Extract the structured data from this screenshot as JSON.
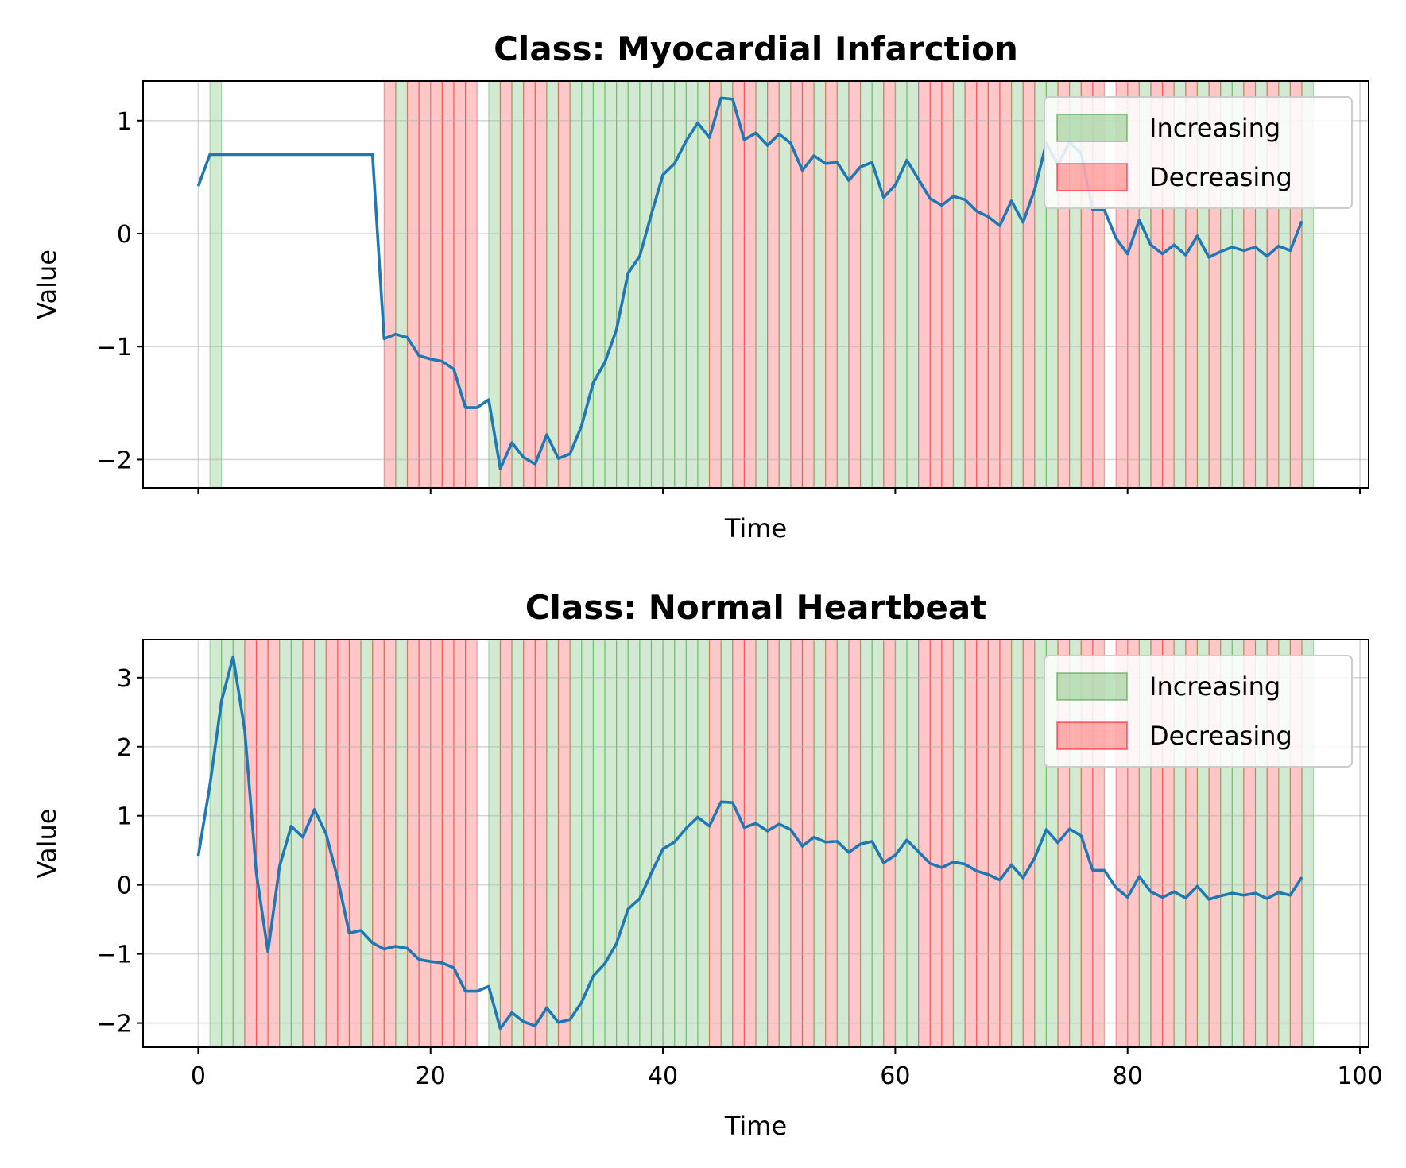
{
  "chart_data": [
    {
      "type": "line",
      "title": "Class: Myocardial Infarction",
      "xlabel": "Time",
      "ylabel": "Value",
      "xlim": [
        -4.75,
        100.75
      ],
      "ylim": [
        -2.25,
        1.35
      ],
      "xticks": [
        0,
        20,
        40,
        60,
        80,
        100
      ],
      "xtick_labels": [
        "",
        "",
        "",
        "",
        "",
        ""
      ],
      "yticks": [
        -2,
        -1,
        0,
        1
      ],
      "ytick_labels": [
        "−2",
        "−1",
        "0",
        "1"
      ],
      "grid": true,
      "legend": {
        "position": "top-right",
        "entries": [
          "Increasing",
          "Decreasing"
        ]
      },
      "colors": {
        "line": "#1f77b4",
        "increasing": "#2ca02c",
        "decreasing": "#ff0000"
      },
      "series": [
        {
          "x": [
            0,
            1,
            2,
            3,
            4,
            5,
            6,
            7,
            8,
            9,
            10,
            11,
            12,
            13,
            14,
            15,
            16,
            17,
            18,
            19,
            20,
            21,
            22,
            23,
            24,
            25,
            26,
            27,
            28,
            29,
            30,
            31,
            32,
            33,
            34,
            35,
            36,
            37,
            38,
            39,
            40,
            41,
            42,
            43,
            44,
            45,
            46,
            47,
            48,
            49,
            50,
            51,
            52,
            53,
            54,
            55,
            56,
            57,
            58,
            59,
            60,
            61,
            62,
            63,
            64,
            65,
            66,
            67,
            68,
            69,
            70,
            71,
            72,
            73,
            74,
            75,
            76,
            77,
            78,
            79,
            80,
            81,
            82,
            83,
            84,
            85,
            86,
            87,
            88,
            89,
            90,
            91,
            92,
            93,
            94,
            95
          ],
          "y": [
            0.42,
            0.7,
            0.7,
            0.7,
            0.7,
            0.7,
            0.7,
            0.7,
            0.7,
            0.7,
            0.7,
            0.7,
            0.7,
            0.7,
            0.7,
            0.7,
            -0.93,
            -0.89,
            -0.92,
            -1.08,
            -1.11,
            -1.13,
            -1.2,
            -1.54,
            -1.54,
            -1.47,
            -2.08,
            -1.85,
            -1.98,
            -2.04,
            -1.78,
            -1.99,
            -1.95,
            -1.7,
            -1.32,
            -1.14,
            -0.85,
            -0.35,
            -0.2,
            0.17,
            0.52,
            0.62,
            0.82,
            0.98,
            0.85,
            1.2,
            1.19,
            0.83,
            0.89,
            0.78,
            0.88,
            0.8,
            0.56,
            0.69,
            0.62,
            0.63,
            0.47,
            0.59,
            0.63,
            0.32,
            0.43,
            0.65,
            0.48,
            0.31,
            0.25,
            0.33,
            0.3,
            0.2,
            0.15,
            0.07,
            0.29,
            0.1,
            0.39,
            0.8,
            0.61,
            0.81,
            0.71,
            0.21,
            0.21,
            -0.04,
            -0.18,
            0.12,
            -0.1,
            -0.18,
            -0.1,
            -0.19,
            -0.02,
            -0.21,
            -0.16,
            -0.12,
            -0.15,
            -0.12,
            -0.2,
            -0.11,
            -0.15,
            0.11
          ]
        }
      ]
    },
    {
      "type": "line",
      "title": "Class: Normal Heartbeat",
      "xlabel": "Time",
      "ylabel": "Value",
      "xlim": [
        -4.75,
        100.75
      ],
      "ylim": [
        -2.35,
        3.55
      ],
      "xticks": [
        0,
        20,
        40,
        60,
        80,
        100
      ],
      "xtick_labels": [
        "0",
        "20",
        "40",
        "60",
        "80",
        "100"
      ],
      "yticks": [
        -2,
        -1,
        0,
        1,
        2,
        3
      ],
      "ytick_labels": [
        "−2",
        "−1",
        "0",
        "1",
        "2",
        "3"
      ],
      "grid": true,
      "legend": {
        "position": "top-right",
        "entries": [
          "Increasing",
          "Decreasing"
        ]
      },
      "colors": {
        "line": "#1f77b4",
        "increasing": "#2ca02c",
        "decreasing": "#ff0000"
      },
      "series": [
        {
          "x": [
            0,
            1,
            2,
            3,
            4,
            5,
            6,
            7,
            8,
            9,
            10,
            11,
            12,
            13,
            14,
            15,
            16,
            17,
            18,
            19,
            20,
            21,
            22,
            23,
            24,
            25,
            26,
            27,
            28,
            29,
            30,
            31,
            32,
            33,
            34,
            35,
            36,
            37,
            38,
            39,
            40,
            41,
            42,
            43,
            44,
            45,
            46,
            47,
            48,
            49,
            50,
            51,
            52,
            53,
            54,
            55,
            56,
            57,
            58,
            59,
            60,
            61,
            62,
            63,
            64,
            65,
            66,
            67,
            68,
            69,
            70,
            71,
            72,
            73,
            74,
            75,
            76,
            77,
            78,
            79,
            80,
            81,
            82,
            83,
            84,
            85,
            86,
            87,
            88,
            89,
            90,
            91,
            92,
            93,
            94,
            95
          ],
          "y": [
            0.42,
            1.44,
            2.66,
            3.3,
            2.24,
            0.17,
            -0.97,
            0.27,
            0.85,
            0.69,
            1.09,
            0.74,
            0.09,
            -0.7,
            -0.66,
            -0.84,
            -0.93,
            -0.89,
            -0.92,
            -1.08,
            -1.11,
            -1.13,
            -1.2,
            -1.54,
            -1.54,
            -1.47,
            -2.08,
            -1.85,
            -1.98,
            -2.04,
            -1.78,
            -1.99,
            -1.95,
            -1.7,
            -1.32,
            -1.14,
            -0.85,
            -0.35,
            -0.2,
            0.17,
            0.52,
            0.62,
            0.82,
            0.98,
            0.85,
            1.2,
            1.19,
            0.83,
            0.89,
            0.78,
            0.88,
            0.8,
            0.56,
            0.69,
            0.62,
            0.63,
            0.47,
            0.59,
            0.63,
            0.32,
            0.43,
            0.65,
            0.48,
            0.31,
            0.25,
            0.33,
            0.3,
            0.2,
            0.15,
            0.07,
            0.29,
            0.1,
            0.39,
            0.8,
            0.61,
            0.81,
            0.71,
            0.21,
            0.21,
            -0.04,
            -0.18,
            0.12,
            -0.1,
            -0.18,
            -0.1,
            -0.19,
            -0.02,
            -0.21,
            -0.16,
            -0.12,
            -0.15,
            -0.12,
            -0.2,
            -0.11,
            -0.15,
            0.11
          ]
        }
      ]
    }
  ]
}
